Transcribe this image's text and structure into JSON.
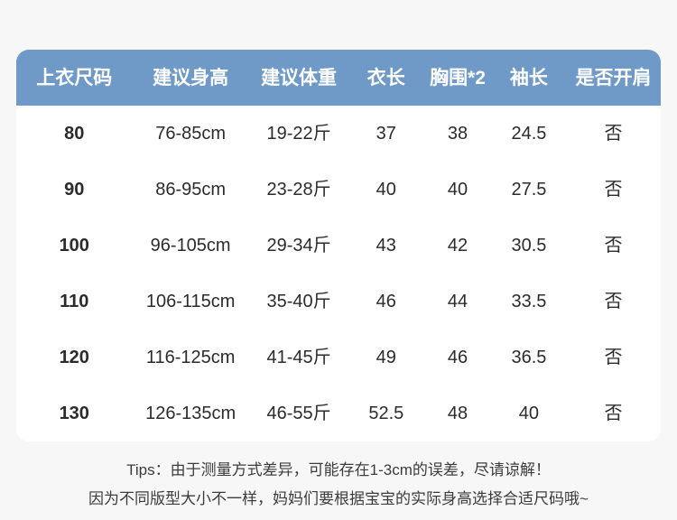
{
  "table": {
    "headers": [
      "上衣尺码",
      "建议身高",
      "建议体重",
      "衣长",
      "胸围*2",
      "袖长",
      "是否开肩"
    ],
    "rows": [
      [
        "80",
        "76-85cm",
        "19-22斤",
        "37",
        "38",
        "24.5",
        "否"
      ],
      [
        "90",
        "86-95cm",
        "23-28斤",
        "40",
        "40",
        "27.5",
        "否"
      ],
      [
        "100",
        "96-105cm",
        "29-34斤",
        "43",
        "42",
        "30.5",
        "否"
      ],
      [
        "110",
        "106-115cm",
        "35-40斤",
        "46",
        "44",
        "33.5",
        "否"
      ],
      [
        "120",
        "116-125cm",
        "41-45斤",
        "49",
        "46",
        "36.5",
        "否"
      ],
      [
        "130",
        "126-135cm",
        "46-55斤",
        "52.5",
        "48",
        "40",
        "否"
      ]
    ]
  },
  "tips": {
    "line1": "Tips：由于测量方式差异，可能存在1-3cm的误差，尽请谅解！",
    "line2": "因为不同版型大小不一样，妈妈们要根据宝宝的实际身高选择合适尺码哦~"
  },
  "colors": {
    "header_bg": "#6f9ac8",
    "header_text": "#ffffff",
    "card_bg": "#ffffff",
    "page_bg": "#f7f7f8",
    "body_text": "#2b2b2b",
    "tips_text": "#3c3c3c"
  }
}
